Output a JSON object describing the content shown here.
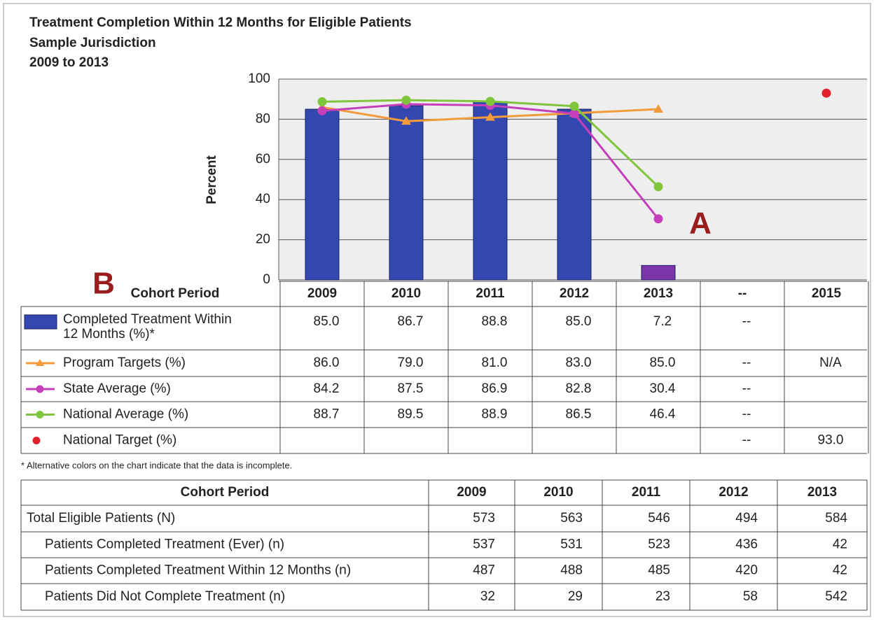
{
  "title": "Treatment Completion Within 12 Months for Eligible Patients",
  "subtitle": "Sample Jurisdiction",
  "period": "2009 to 2013",
  "annotations": [
    "A",
    "B"
  ],
  "chart_data": {
    "type": "bar",
    "ylabel": "Percent",
    "ylim": [
      0,
      100
    ],
    "yticks": [
      0,
      20,
      40,
      60,
      80,
      100
    ],
    "grid": true,
    "category_header": "Cohort Period",
    "categories": [
      "2009",
      "2010",
      "2011",
      "2012",
      "2013",
      "--",
      "2015"
    ],
    "series": [
      {
        "name": "Completed Treatment Within 12 Months (%)*",
        "type": "bar",
        "color": "#3347b0",
        "colors": [
          "#3347b0",
          "#3347b0",
          "#3347b0",
          "#3347b0",
          "#7a36a8",
          null,
          null
        ],
        "values": [
          85.0,
          86.7,
          88.8,
          85.0,
          7.2,
          null,
          null
        ],
        "value_labels": [
          "85.0",
          "86.7",
          "88.8",
          "85.0",
          "7.2",
          "--",
          null
        ]
      },
      {
        "name": "Program Targets (%)",
        "type": "line",
        "marker": "triangle",
        "color": "#f39a3a",
        "values": [
          86.0,
          79.0,
          81.0,
          83.0,
          85.0,
          null,
          null
        ],
        "value_labels": [
          "86.0",
          "79.0",
          "81.0",
          "83.0",
          "85.0",
          "--",
          "N/A"
        ]
      },
      {
        "name": "State Average (%)",
        "type": "line",
        "marker": "circle",
        "color": "#c63fba",
        "values": [
          84.2,
          87.5,
          86.9,
          82.8,
          30.4,
          null,
          null
        ],
        "value_labels": [
          "84.2",
          "87.5",
          "86.9",
          "82.8",
          "30.4",
          "--",
          null
        ]
      },
      {
        "name": "National Average (%)",
        "type": "line",
        "marker": "circle",
        "color": "#80c63c",
        "values": [
          88.7,
          89.5,
          88.9,
          86.5,
          46.4,
          null,
          null
        ],
        "value_labels": [
          "88.7",
          "89.5",
          "88.9",
          "86.5",
          "46.4",
          "--",
          null
        ]
      },
      {
        "name": "National Target (%)",
        "type": "scatter",
        "marker": "circle",
        "color": "#e0202a",
        "values": [
          null,
          null,
          null,
          null,
          null,
          null,
          93.0
        ],
        "value_labels": [
          null,
          null,
          null,
          null,
          null,
          "--",
          "93.0"
        ]
      }
    ]
  },
  "footnote": "* Alternative colors on the chart indicate that the data is incomplete.",
  "patients_table": {
    "header": [
      "Cohort Period",
      "2009",
      "2010",
      "2011",
      "2012",
      "2013"
    ],
    "rows": [
      {
        "label": "Total Eligible Patients (N)",
        "values": [
          573,
          563,
          546,
          494,
          584
        ]
      },
      {
        "label": "Patients Completed Treatment (Ever) (n)",
        "values": [
          537,
          531,
          523,
          436,
          42
        ]
      },
      {
        "label": "Patients Completed Treatment Within 12 Months (n)",
        "values": [
          487,
          488,
          485,
          420,
          42
        ]
      },
      {
        "label": "Patients Did Not Complete Treatment (n)",
        "values": [
          32,
          29,
          23,
          58,
          542
        ]
      }
    ]
  }
}
